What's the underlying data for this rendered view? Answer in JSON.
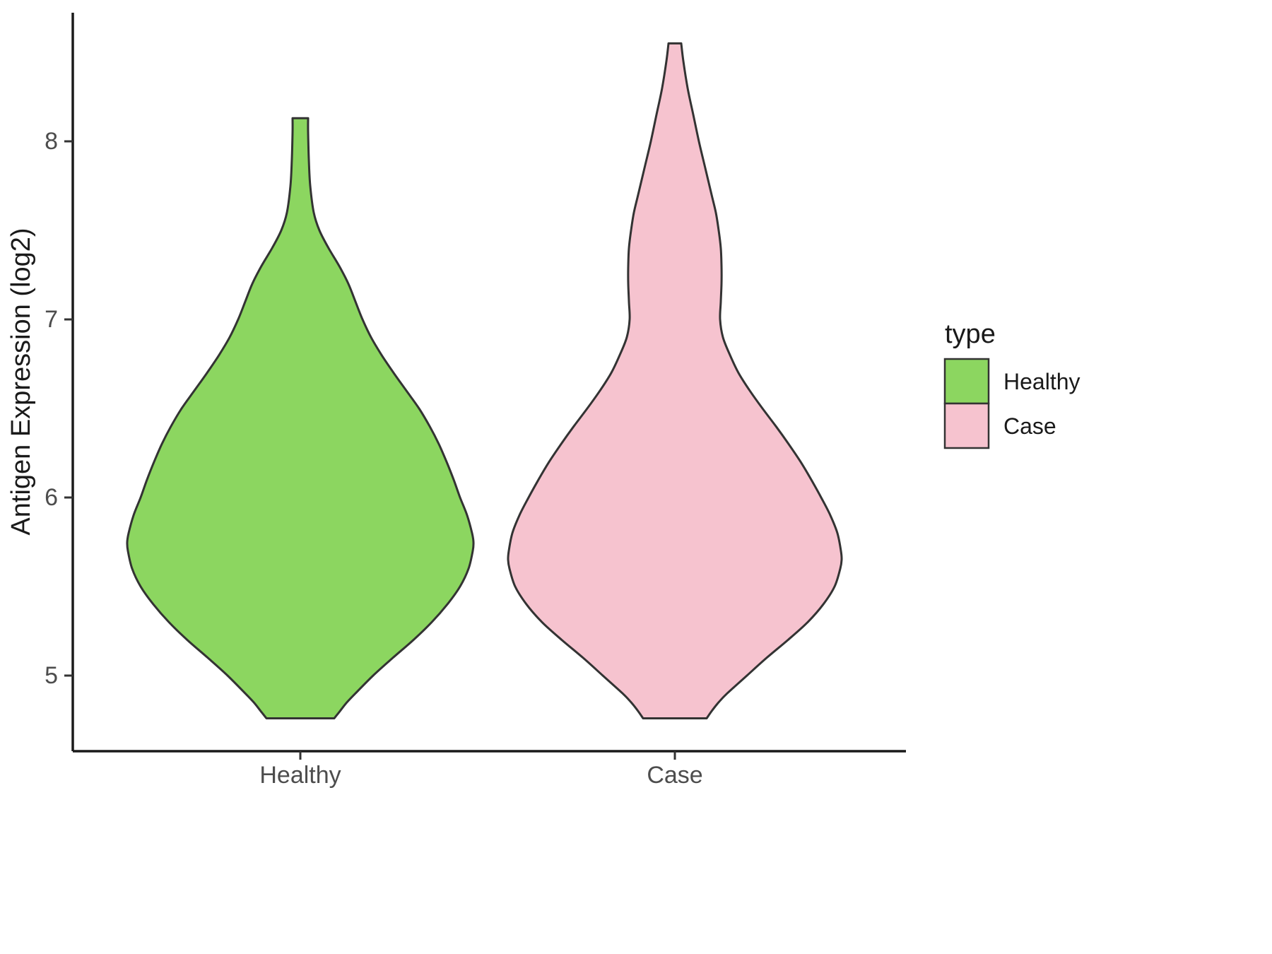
{
  "chart_data": {
    "type": "violin",
    "title": "",
    "xlabel": "",
    "ylabel": "Antigen Expression (log2)",
    "categories": [
      "Healthy",
      "Case"
    ],
    "y_ticks": [
      "8",
      "7",
      "6",
      "5"
    ],
    "y_tick_values": [
      8,
      7,
      6,
      5
    ],
    "ylim": [
      4.5,
      8.75
    ],
    "grid": false,
    "legend_position": "right",
    "legend": {
      "title": "type",
      "entries": [
        {
          "label": "Healthy",
          "color": "#8cd660"
        },
        {
          "label": "Case",
          "color": "#f6c3cf"
        }
      ]
    },
    "series": [
      {
        "name": "Healthy",
        "color": "#8cd660",
        "outline": "#333333",
        "value_range": [
          4.76,
          8.13
        ],
        "profile": [
          [
            8.13,
            11
          ],
          [
            8.05,
            11
          ],
          [
            7.9,
            12
          ],
          [
            7.75,
            14
          ],
          [
            7.6,
            19
          ],
          [
            7.5,
            27
          ],
          [
            7.4,
            40
          ],
          [
            7.3,
            55
          ],
          [
            7.2,
            68
          ],
          [
            7.1,
            78
          ],
          [
            7.0,
            88
          ],
          [
            6.9,
            100
          ],
          [
            6.8,
            115
          ],
          [
            6.7,
            132
          ],
          [
            6.6,
            150
          ],
          [
            6.5,
            168
          ],
          [
            6.4,
            183
          ],
          [
            6.3,
            196
          ],
          [
            6.2,
            207
          ],
          [
            6.1,
            217
          ],
          [
            6.0,
            226
          ],
          [
            5.9,
            236
          ],
          [
            5.8,
            243
          ],
          [
            5.75,
            245
          ],
          [
            5.7,
            244
          ],
          [
            5.6,
            238
          ],
          [
            5.5,
            226
          ],
          [
            5.4,
            208
          ],
          [
            5.3,
            186
          ],
          [
            5.2,
            160
          ],
          [
            5.1,
            131
          ],
          [
            5.0,
            103
          ],
          [
            4.9,
            78
          ],
          [
            4.85,
            66
          ],
          [
            4.8,
            56
          ],
          [
            4.76,
            48
          ]
        ]
      },
      {
        "name": "Case",
        "color": "#f6c3cf",
        "outline": "#333333",
        "value_range": [
          4.76,
          8.55
        ],
        "profile": [
          [
            8.55,
            9
          ],
          [
            8.45,
            12
          ],
          [
            8.3,
            18
          ],
          [
            8.15,
            26
          ],
          [
            8.0,
            34
          ],
          [
            7.85,
            43
          ],
          [
            7.7,
            52
          ],
          [
            7.6,
            58
          ],
          [
            7.5,
            62
          ],
          [
            7.4,
            65
          ],
          [
            7.3,
            66
          ],
          [
            7.2,
            66
          ],
          [
            7.1,
            65
          ],
          [
            7.0,
            64
          ],
          [
            6.9,
            68
          ],
          [
            6.8,
            78
          ],
          [
            6.7,
            90
          ],
          [
            6.6,
            106
          ],
          [
            6.5,
            124
          ],
          [
            6.4,
            143
          ],
          [
            6.3,
            161
          ],
          [
            6.2,
            178
          ],
          [
            6.1,
            193
          ],
          [
            6.0,
            207
          ],
          [
            5.9,
            220
          ],
          [
            5.8,
            230
          ],
          [
            5.7,
            235
          ],
          [
            5.65,
            236
          ],
          [
            5.6,
            234
          ],
          [
            5.5,
            226
          ],
          [
            5.4,
            210
          ],
          [
            5.3,
            188
          ],
          [
            5.2,
            160
          ],
          [
            5.1,
            130
          ],
          [
            5.0,
            102
          ],
          [
            4.9,
            74
          ],
          [
            4.85,
            62
          ],
          [
            4.8,
            52
          ],
          [
            4.76,
            45
          ]
        ]
      }
    ],
    "colors": {
      "background": "#ffffff",
      "axis": "#1a1a1a",
      "outline": "#333333",
      "tick_label": "#4d4d4d"
    }
  }
}
